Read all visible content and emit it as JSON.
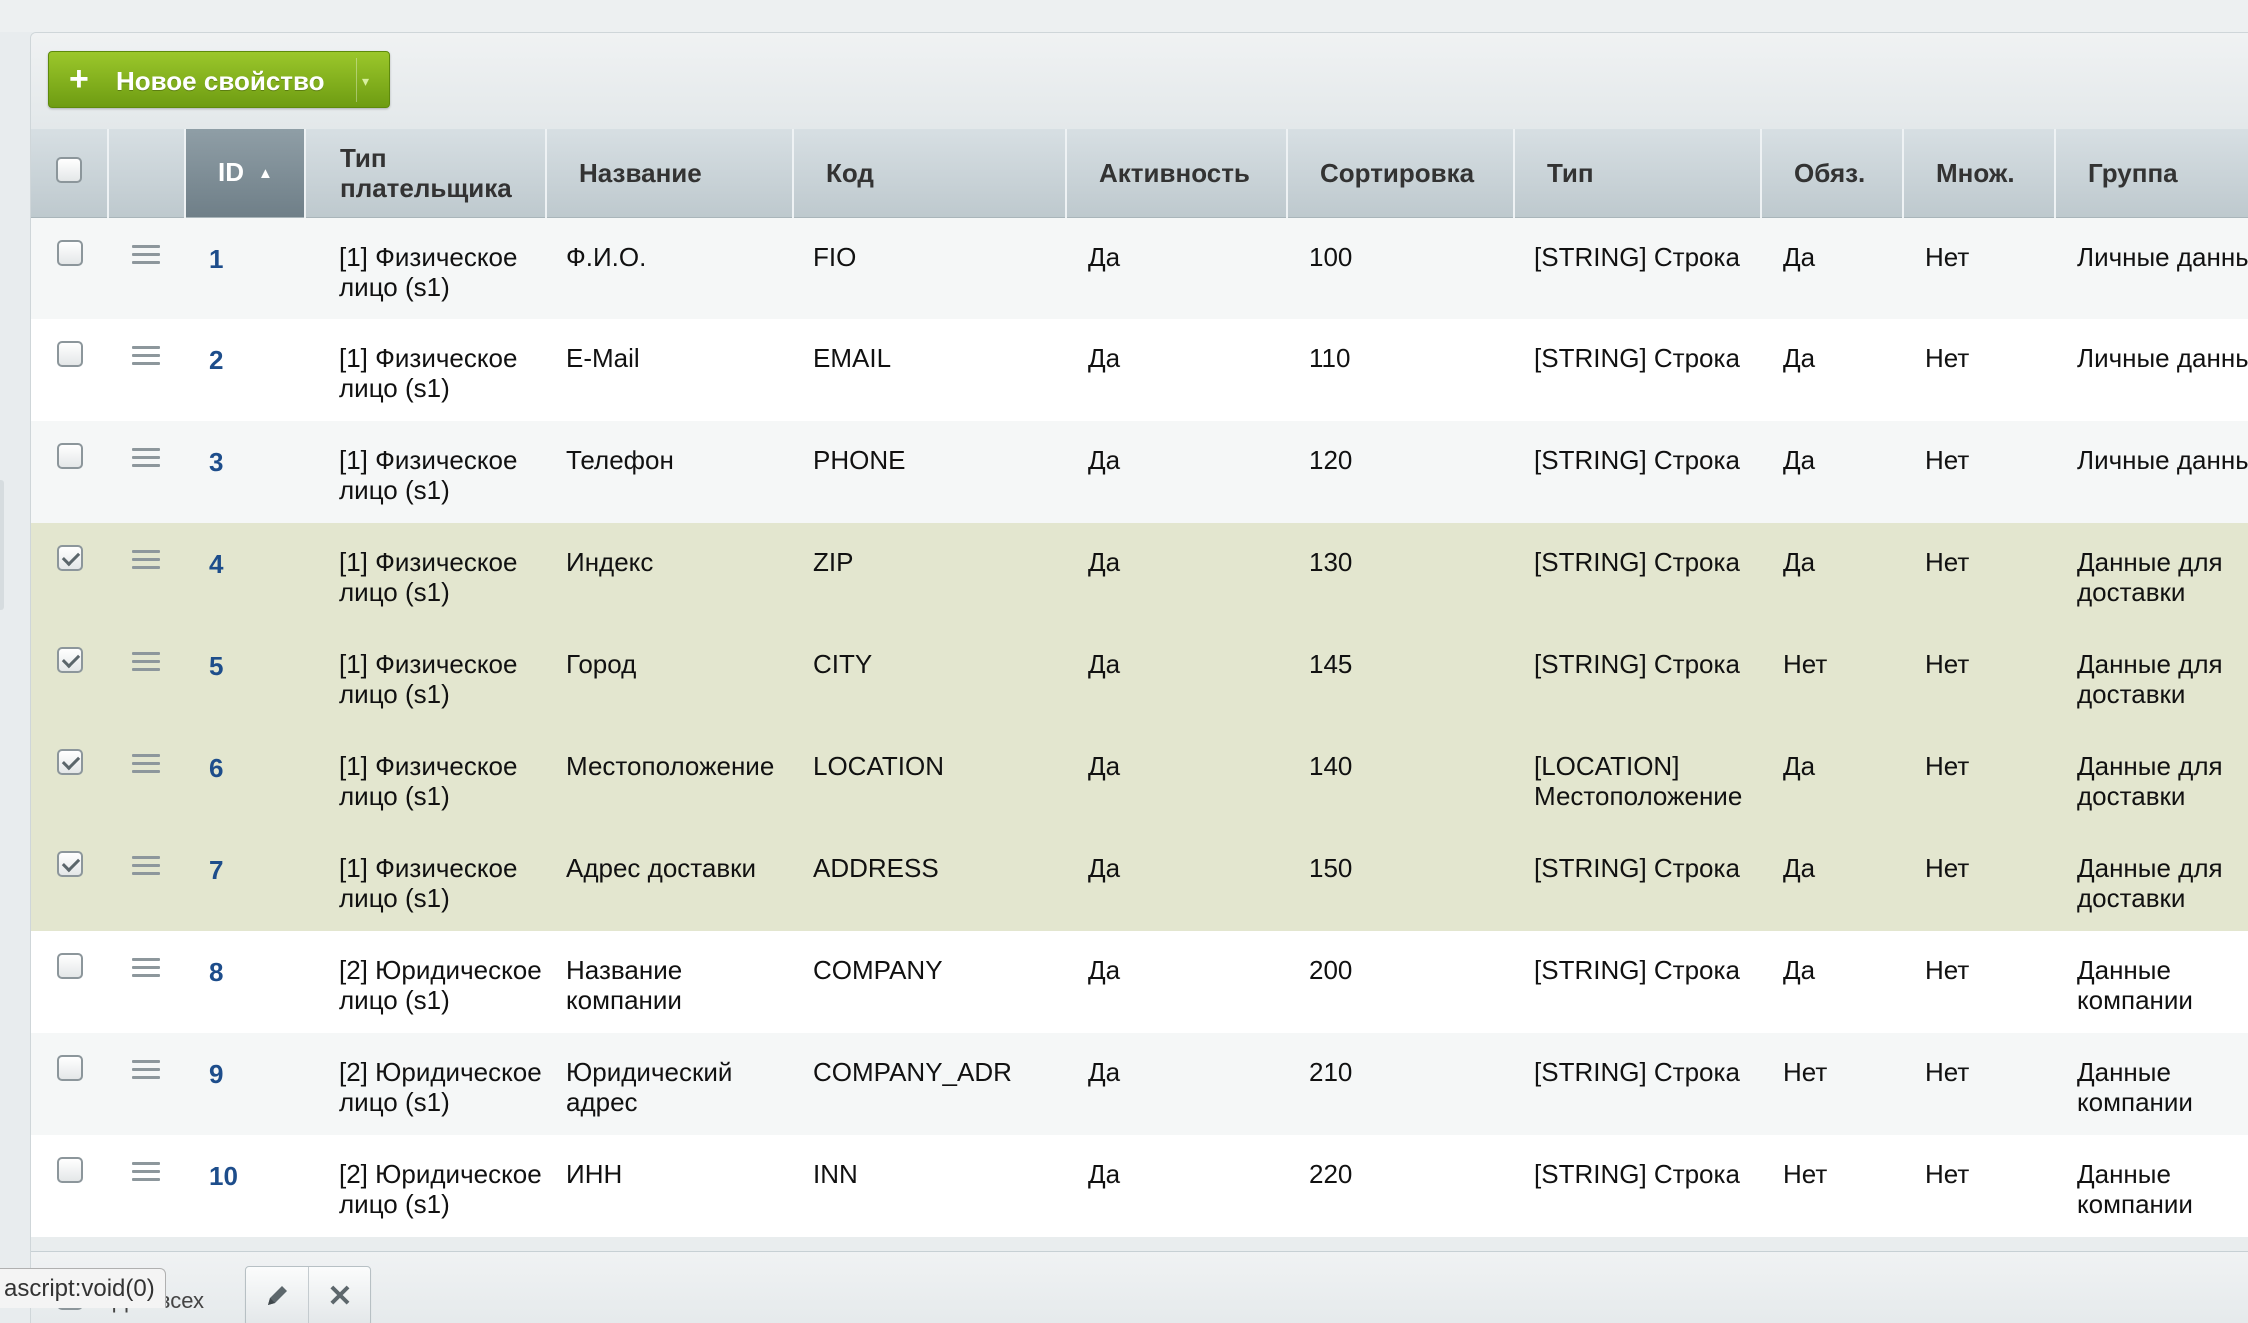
{
  "toolbar": {
    "new_property_label": "Новое свойство"
  },
  "table": {
    "headers": {
      "id": "ID",
      "payer_type": "Тип плательщика",
      "name": "Название",
      "code": "Код",
      "active": "Активность",
      "sort": "Сортировка",
      "type": "Тип",
      "required": "Обяз.",
      "multiple": "Множ.",
      "group": "Группа"
    },
    "rows": [
      {
        "id": "1",
        "payer_type": "[1] Физическое лицо (s1)",
        "name": "Ф.И.О.",
        "code": "FIO",
        "active": "Да",
        "sort": "100",
        "type": "[STRING] Строка",
        "required": "Да",
        "multiple": "Нет",
        "group": "Личные данные",
        "checked": false
      },
      {
        "id": "2",
        "payer_type": "[1] Физическое лицо (s1)",
        "name": "E-Mail",
        "code": "EMAIL",
        "active": "Да",
        "sort": "110",
        "type": "[STRING] Строка",
        "required": "Да",
        "multiple": "Нет",
        "group": "Личные данные",
        "checked": false
      },
      {
        "id": "3",
        "payer_type": "[1] Физическое лицо (s1)",
        "name": "Телефон",
        "code": "PHONE",
        "active": "Да",
        "sort": "120",
        "type": "[STRING] Строка",
        "required": "Да",
        "multiple": "Нет",
        "group": "Личные данные",
        "checked": false
      },
      {
        "id": "4",
        "payer_type": "[1] Физическое лицо (s1)",
        "name": "Индекс",
        "code": "ZIP",
        "active": "Да",
        "sort": "130",
        "type": "[STRING] Строка",
        "required": "Да",
        "multiple": "Нет",
        "group": "Данные для доставки",
        "checked": true
      },
      {
        "id": "5",
        "payer_type": "[1] Физическое лицо (s1)",
        "name": "Город",
        "code": "CITY",
        "active": "Да",
        "sort": "145",
        "type": "[STRING] Строка",
        "required": "Нет",
        "multiple": "Нет",
        "group": "Данные для доставки",
        "checked": true
      },
      {
        "id": "6",
        "payer_type": "[1] Физическое лицо (s1)",
        "name": "Местоположение",
        "code": "LOCATION",
        "active": "Да",
        "sort": "140",
        "type": "[LOCATION] Местоположение",
        "required": "Да",
        "multiple": "Нет",
        "group": "Данные для доставки",
        "checked": true
      },
      {
        "id": "7",
        "payer_type": "[1] Физическое лицо (s1)",
        "name": "Адрес доставки",
        "code": "ADDRESS",
        "active": "Да",
        "sort": "150",
        "type": "[STRING] Строка",
        "required": "Да",
        "multiple": "Нет",
        "group": "Данные для доставки",
        "checked": true
      },
      {
        "id": "8",
        "payer_type": "[2] Юридическое лицо (s1)",
        "name": "Название компании",
        "code": "COMPANY",
        "active": "Да",
        "sort": "200",
        "type": "[STRING] Строка",
        "required": "Да",
        "multiple": "Нет",
        "group": "Данные компании",
        "checked": false
      },
      {
        "id": "9",
        "payer_type": "[2] Юридическое лицо (s1)",
        "name": "Юридический адрес",
        "code": "COMPANY_ADR",
        "active": "Да",
        "sort": "210",
        "type": "[STRING] Строка",
        "required": "Нет",
        "multiple": "Нет",
        "group": "Данные компании",
        "checked": false
      },
      {
        "id": "10",
        "payer_type": "[2] Юридическое лицо (s1)",
        "name": "ИНН",
        "code": "INN",
        "active": "Да",
        "sort": "220",
        "type": "[STRING] Строка",
        "required": "Нет",
        "multiple": "Нет",
        "group": "Данные компании",
        "checked": false
      }
    ]
  },
  "footer": {
    "for_all_label": "Для всех"
  },
  "status_bar": {
    "text": "ascript:void(0)"
  },
  "colors": {
    "accent_green": "#7aa81a",
    "selected_row": "#e3e6cf",
    "link": "#1d4d8b"
  },
  "icons": [
    "plus-icon",
    "chevron-down-icon",
    "burger-icon",
    "pencil-icon",
    "close-icon"
  ]
}
